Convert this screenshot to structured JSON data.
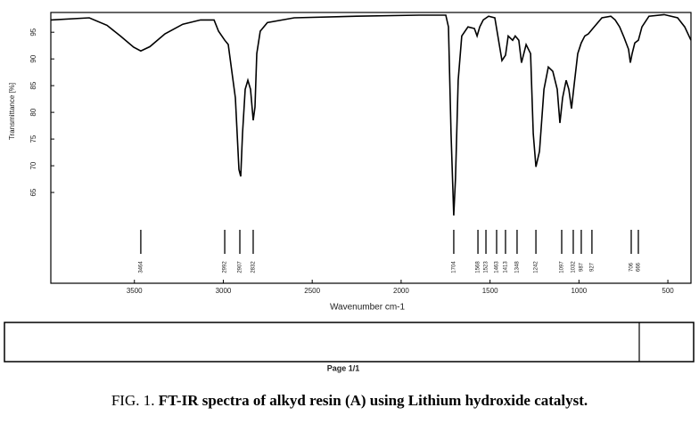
{
  "chart_data": {
    "type": "line",
    "x_label": "Wavenumber cm-1",
    "y_label": "Transmittance [%]",
    "xlim": [
      3970,
      370
    ],
    "xticks": [
      3500,
      3000,
      2500,
      2000,
      1500,
      1000,
      500
    ],
    "ylim": [
      48,
      98.7
    ],
    "yticks": [
      95,
      90,
      85,
      80,
      75,
      70,
      65
    ],
    "color": "#000000",
    "x": [
      3970,
      3754,
      3654,
      3579,
      3504,
      3464,
      3413,
      3328,
      3228,
      3128,
      3052,
      3027,
      2992,
      2972,
      2952,
      2932,
      2912,
      2902,
      2892,
      2877,
      2862,
      2847,
      2832,
      2822,
      2812,
      2792,
      2752,
      2601,
      2250,
      1899,
      1749,
      1734,
      1719,
      1704,
      1694,
      1679,
      1659,
      1624,
      1588,
      1573,
      1558,
      1538,
      1508,
      1473,
      1448,
      1433,
      1413,
      1398,
      1373,
      1358,
      1338,
      1323,
      1297,
      1272,
      1257,
      1242,
      1222,
      1197,
      1172,
      1147,
      1122,
      1107,
      1092,
      1072,
      1057,
      1042,
      1027,
      1007,
      987,
      967,
      947,
      922,
      871,
      821,
      796,
      771,
      746,
      721,
      711,
      701,
      686,
      666,
      646,
      606,
      521,
      445,
      405,
      370
    ],
    "values": [
      97.3,
      97.7,
      96.3,
      94.3,
      92.2,
      91.5,
      92.3,
      94.7,
      96.5,
      97.3,
      97.3,
      95.2,
      93.5,
      92.7,
      87.7,
      82.7,
      69.3,
      68,
      76,
      84.3,
      86,
      84.3,
      78.5,
      81,
      91,
      95.2,
      96.8,
      97.7,
      98,
      98.2,
      98.2,
      96,
      76,
      60.7,
      67.7,
      86,
      94.3,
      96,
      95.7,
      94.3,
      96,
      97.3,
      98,
      97.7,
      92.7,
      89.7,
      90.7,
      94.3,
      93.5,
      94.3,
      93.5,
      89.3,
      92.7,
      91,
      76,
      69.8,
      72.7,
      84.3,
      88.5,
      87.7,
      84.3,
      78,
      82.7,
      86,
      84.3,
      80.7,
      85.2,
      91,
      93,
      94.3,
      94.7,
      95.7,
      97.7,
      98,
      97.3,
      96,
      94,
      91.8,
      89.3,
      91,
      93,
      93.5,
      96,
      98,
      98.3,
      97.7,
      96,
      93.5
    ],
    "peaks": [
      3464,
      2992,
      2907,
      2832,
      1704,
      1568,
      1523,
      1463,
      1413,
      1348,
      1242,
      1097,
      1032,
      987,
      927,
      706,
      666
    ]
  },
  "footer": {
    "page": "Page 1/1"
  },
  "caption": {
    "label": "FIG. 1.",
    "text": "FT-IR spectra of alkyd resin (A) using Lithium hydroxide catalyst."
  }
}
